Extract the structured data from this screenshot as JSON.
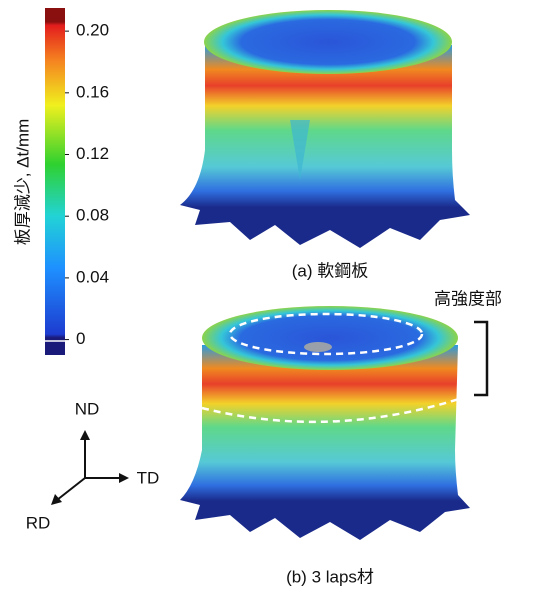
{
  "colorbar": {
    "label": "板厚減少, Δt/mm",
    "lim": [
      -0.01,
      0.215
    ],
    "ticks": [
      0,
      0.04,
      0.08,
      0.12,
      0.16,
      {
        "value": 0.2,
        "label": "0.20"
      }
    ]
  },
  "panels": [
    {
      "caption": "(a) 軟鋼板"
    },
    {
      "caption": "(b) 3 laps材"
    }
  ],
  "annotation": "高強度部",
  "axes": {
    "up": "ND",
    "right": "TD",
    "front": "RD"
  }
}
